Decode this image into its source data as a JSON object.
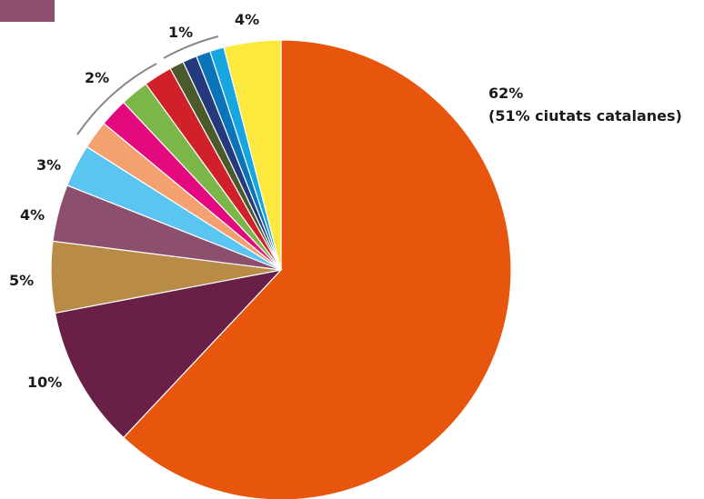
{
  "legend": {
    "swatch_color": "#8d4f6e"
  },
  "chart_data": {
    "type": "pie",
    "start": "12 o'clock, clockwise",
    "slices": [
      {
        "value": 62,
        "color": "#e8560e"
      },
      {
        "value": 10,
        "color": "#6a1f47"
      },
      {
        "value": 5,
        "color": "#b88c47"
      },
      {
        "value": 4,
        "color": "#8d4f6e"
      },
      {
        "value": 3,
        "color": "#5bc5f2"
      },
      {
        "value": 2,
        "color": "#f4a06f"
      },
      {
        "value": 2,
        "color": "#e3087d"
      },
      {
        "value": 2,
        "color": "#7ab648"
      },
      {
        "value": 2,
        "color": "#d0202a"
      },
      {
        "value": 1,
        "color": "#4a5a2a"
      },
      {
        "value": 1,
        "color": "#253a7c"
      },
      {
        "value": 1,
        "color": "#0b73b8"
      },
      {
        "value": 1,
        "color": "#18a6e0"
      },
      {
        "value": 4,
        "color": "#fde93e"
      }
    ],
    "labels": {
      "main_pct": "62%",
      "main_note": "(51% ciutats catalanes)",
      "l10": "10%",
      "l5": "5%",
      "l4a": "4%",
      "l3": "3%",
      "l2": "2%",
      "l1": "1%",
      "l4b": "4%"
    }
  }
}
